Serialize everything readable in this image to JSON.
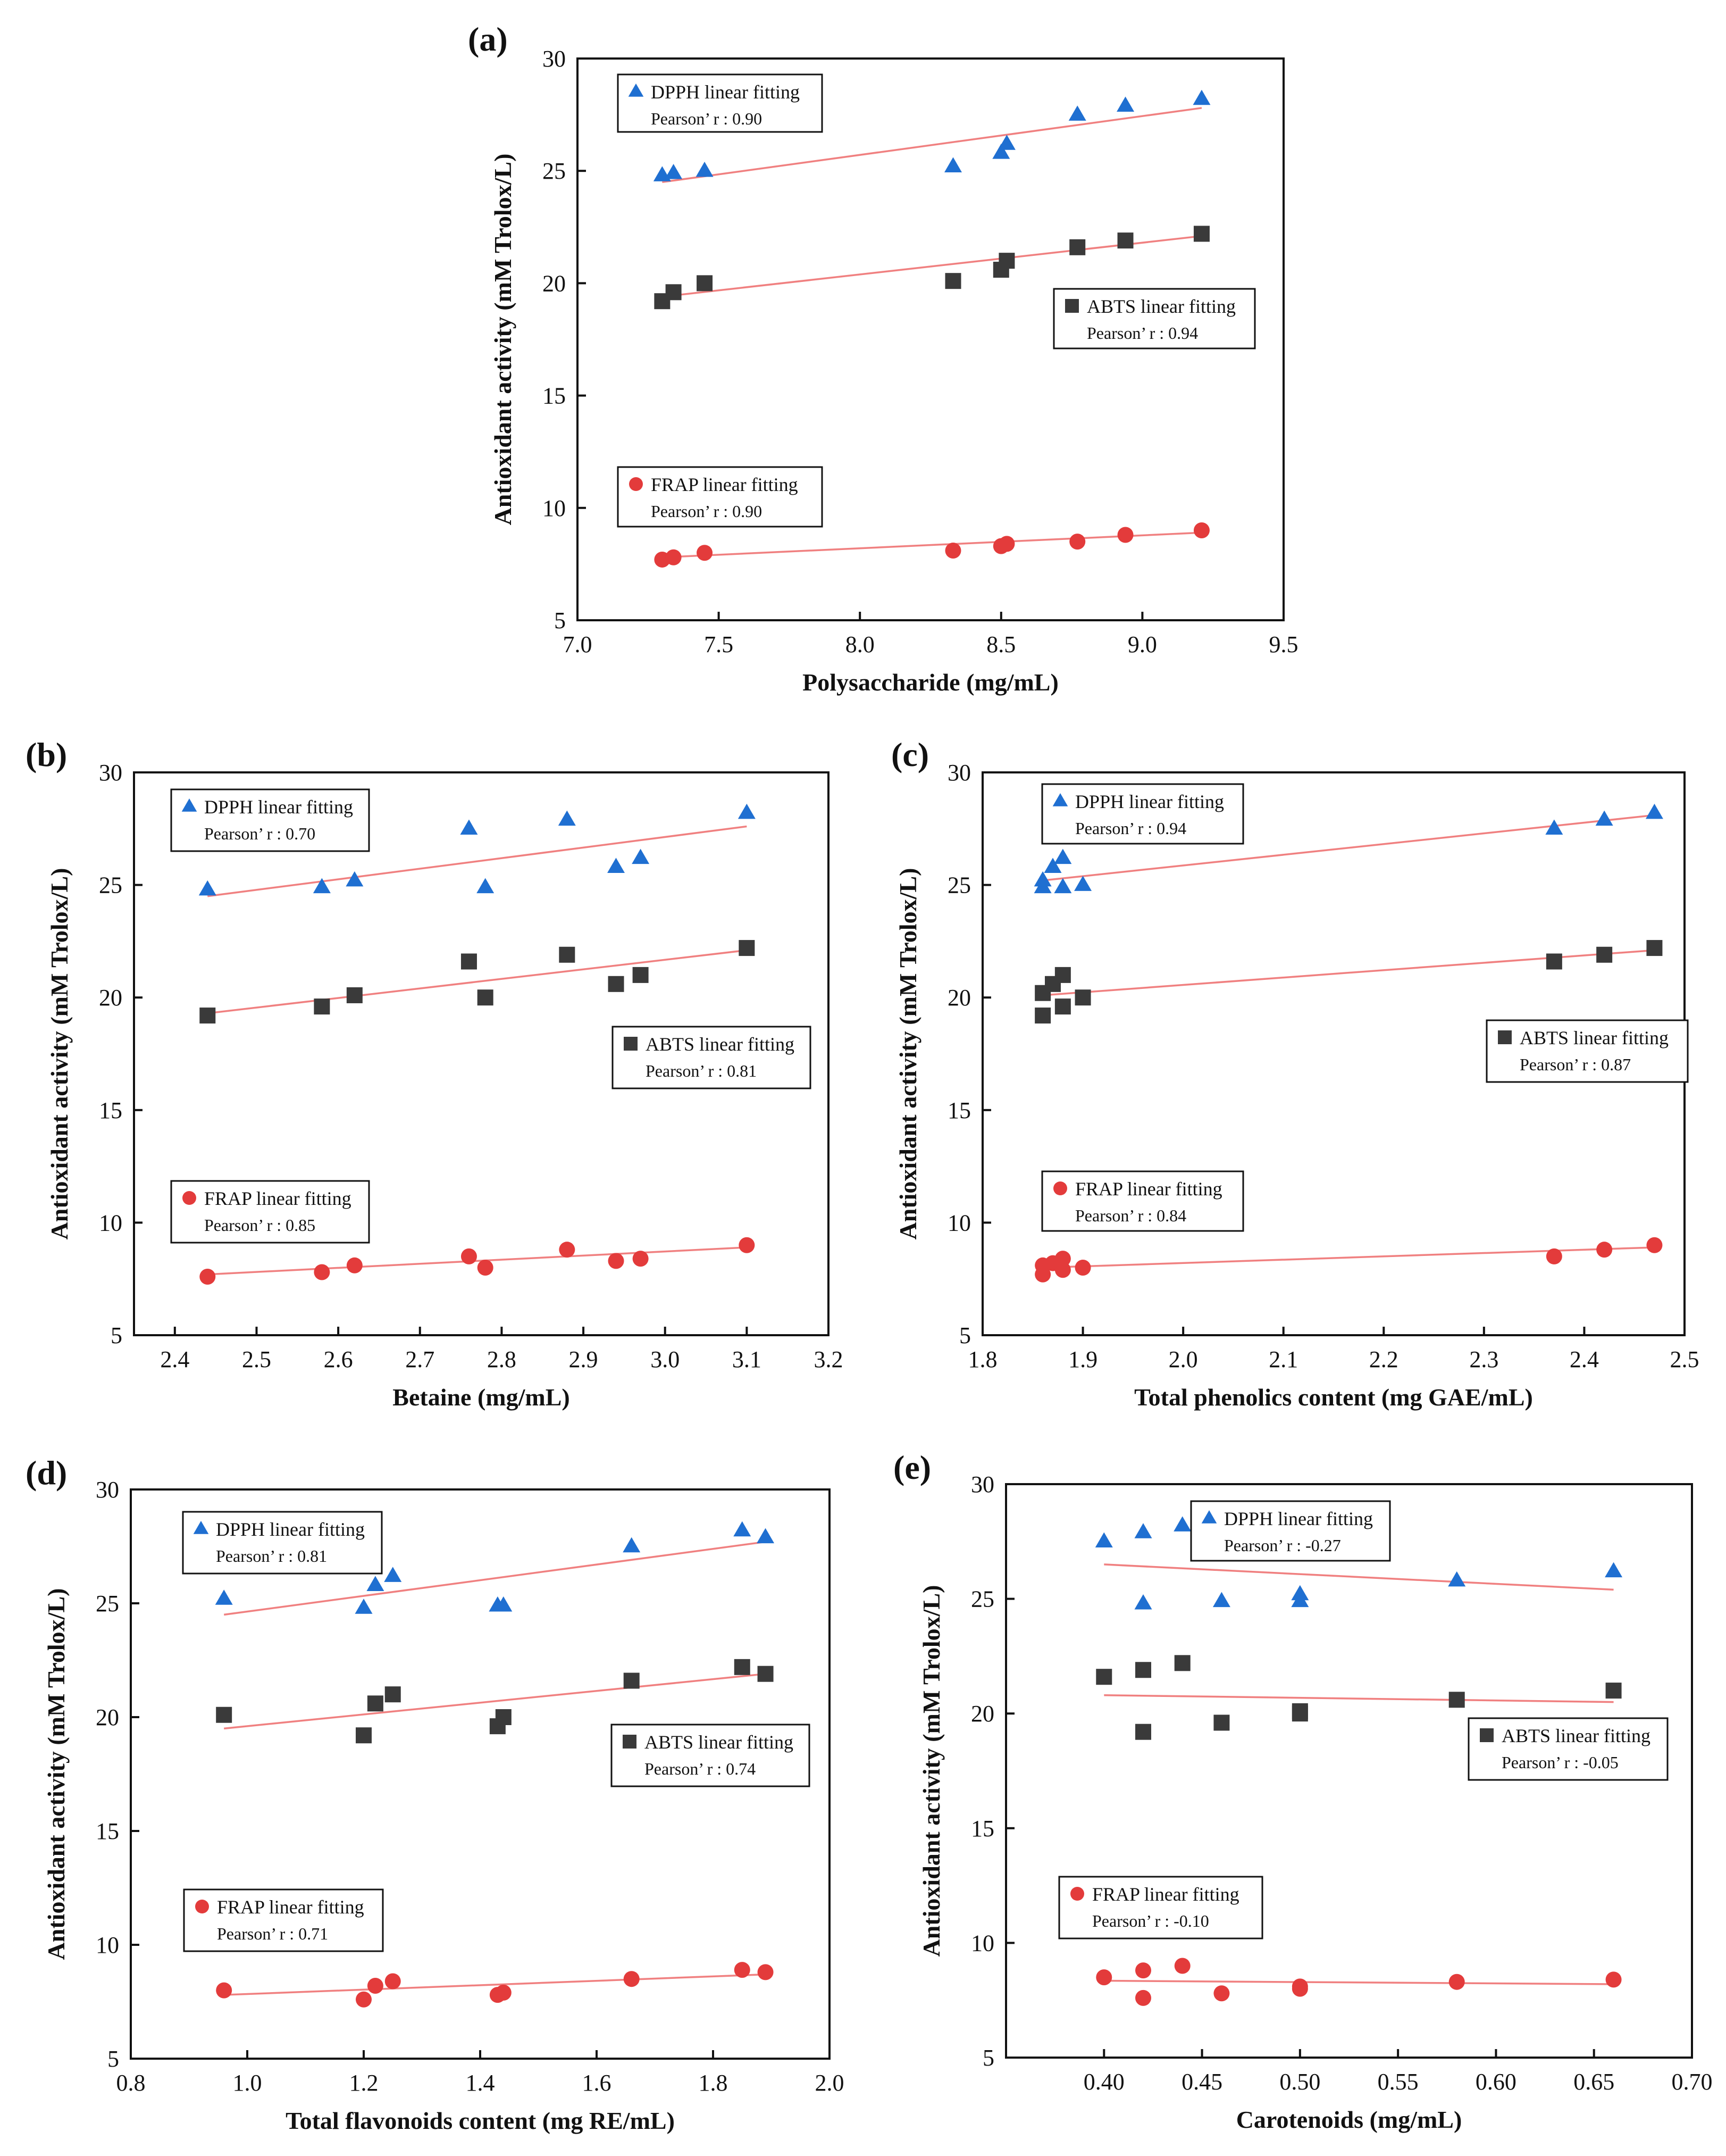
{
  "figure": {
    "ylabel_common": "Antioxidant activity (mM Trolox/L)"
  },
  "chart_data": [
    {
      "type": "scatter",
      "panel": "(a)",
      "xlabel": "Polysaccharide (mg/mL)",
      "ylabel": "Antioxidant activity (mM Trolox/L)",
      "xlim": [
        7.0,
        9.5
      ],
      "ylim": [
        5,
        30
      ],
      "xticks": [
        "7.0",
        "7.5",
        "8.0",
        "8.5",
        "9.0",
        "9.5"
      ],
      "yticks": [
        "5",
        "10",
        "15",
        "20",
        "25",
        "30"
      ],
      "x": [
        7.3,
        7.34,
        7.45,
        8.33,
        8.5,
        8.52,
        8.77,
        8.94,
        9.21
      ],
      "series": [
        {
          "name": "DPPH",
          "marker": "triangle",
          "color": "#1f6fd1",
          "values": [
            24.8,
            24.9,
            25.0,
            25.2,
            25.8,
            26.2,
            27.5,
            27.9,
            28.2
          ],
          "fit": [
            [
              7.3,
              24.5
            ],
            [
              9.21,
              27.8
            ]
          ],
          "legend": "DPPH linear  fitting",
          "pearson": "Pearson’ r :  0.90"
        },
        {
          "name": "ABTS",
          "marker": "square",
          "color": "#3a3a3a",
          "values": [
            19.2,
            19.6,
            20.0,
            20.1,
            20.6,
            21.0,
            21.6,
            21.9,
            22.2
          ],
          "fit": [
            [
              7.3,
              19.4
            ],
            [
              9.21,
              22.1
            ]
          ],
          "legend": "ABTS  linear  fitting",
          "pearson": "Pearson’ r :  0.94"
        },
        {
          "name": "FRAP",
          "marker": "circle",
          "color": "#e33b3b",
          "values": [
            7.7,
            7.8,
            8.0,
            8.1,
            8.3,
            8.4,
            8.5,
            8.8,
            9.0
          ],
          "fit": [
            [
              7.3,
              7.8
            ],
            [
              9.21,
              8.9
            ]
          ],
          "legend": "FRAP linear  fitting",
          "pearson": "Pearson’ r :  0.90"
        }
      ]
    },
    {
      "type": "scatter",
      "panel": "(b)",
      "xlabel": "Betaine (mg/mL)",
      "ylabel": "Antioxidant activity (mM Trolox/L)",
      "xlim": [
        2.35,
        3.2
      ],
      "ylim": [
        5,
        30
      ],
      "xticks": [
        "2.4",
        "2.5",
        "2.6",
        "2.7",
        "2.8",
        "2.9",
        "3.0",
        "3.1",
        "3.2"
      ],
      "yticks": [
        "5",
        "10",
        "15",
        "20",
        "25",
        "30"
      ],
      "series": [
        {
          "name": "DPPH",
          "marker": "triangle",
          "color": "#1f6fd1",
          "x": [
            2.44,
            2.58,
            2.62,
            2.76,
            2.78,
            2.88,
            2.94,
            2.97,
            3.1
          ],
          "values": [
            24.8,
            24.9,
            25.2,
            27.5,
            24.9,
            27.9,
            25.8,
            26.2,
            28.2
          ],
          "fit": [
            [
              2.44,
              24.5
            ],
            [
              3.1,
              27.6
            ]
          ],
          "legend": "DPPH linear  fitting",
          "pearson": "Pearson’ r :  0.70"
        },
        {
          "name": "ABTS",
          "marker": "square",
          "color": "#3a3a3a",
          "x": [
            2.44,
            2.58,
            2.62,
            2.76,
            2.78,
            2.88,
            2.94,
            2.97,
            3.1
          ],
          "values": [
            19.2,
            19.6,
            20.1,
            21.6,
            20.0,
            21.9,
            20.6,
            21.0,
            22.2
          ],
          "fit": [
            [
              2.44,
              19.3
            ],
            [
              3.1,
              22.1
            ]
          ],
          "legend": "ABTS linear  fitting",
          "pearson": "Pearson’ r :  0.81"
        },
        {
          "name": "FRAP",
          "marker": "circle",
          "color": "#e33b3b",
          "x": [
            2.44,
            2.58,
            2.62,
            2.76,
            2.78,
            2.88,
            2.94,
            2.97,
            3.1
          ],
          "values": [
            7.6,
            7.8,
            8.1,
            8.5,
            8.0,
            8.8,
            8.3,
            8.4,
            9.0
          ],
          "fit": [
            [
              2.44,
              7.7
            ],
            [
              3.1,
              8.9
            ]
          ],
          "legend": "FRAP linear  fitting",
          "pearson": "Pearson’ r :  0.85"
        }
      ]
    },
    {
      "type": "scatter",
      "panel": "(c)",
      "xlabel": "Total phenolics content (mg GAE/mL)",
      "ylabel": "Antioxidant activity (mM Trolox/L)",
      "xlim": [
        1.8,
        2.5
      ],
      "ylim": [
        5,
        30
      ],
      "xticks": [
        "1.8",
        "1.9",
        "2.0",
        "2.1",
        "2.2",
        "2.3",
        "2.4",
        "2.5"
      ],
      "yticks": [
        "5",
        "10",
        "15",
        "20",
        "25",
        "30"
      ],
      "series": [
        {
          "name": "DPPH",
          "marker": "triangle",
          "color": "#1f6fd1",
          "x": [
            1.86,
            1.86,
            1.87,
            1.88,
            1.88,
            1.9,
            2.37,
            2.42,
            2.47
          ],
          "values": [
            24.9,
            25.2,
            25.8,
            26.2,
            24.9,
            25.0,
            27.5,
            27.9,
            28.2
          ],
          "fit": [
            [
              1.86,
              25.2
            ],
            [
              2.47,
              28.1
            ]
          ],
          "legend": "DPPH linear  fitting",
          "pearson": "Pearson’ r :  0.94"
        },
        {
          "name": "ABTS",
          "marker": "square",
          "color": "#3a3a3a",
          "x": [
            1.86,
            1.86,
            1.87,
            1.88,
            1.88,
            1.9,
            2.37,
            2.42,
            2.47
          ],
          "values": [
            19.2,
            20.2,
            20.6,
            21.0,
            19.6,
            20.0,
            21.6,
            21.9,
            22.2
          ],
          "fit": [
            [
              1.86,
              20.1
            ],
            [
              2.47,
              22.1
            ]
          ],
          "legend": "ABTS linear  fitting",
          "pearson": "Pearson’ r :  0.87"
        },
        {
          "name": "FRAP",
          "marker": "circle",
          "color": "#e33b3b",
          "x": [
            1.86,
            1.86,
            1.87,
            1.88,
            1.88,
            1.9,
            2.37,
            2.42,
            2.47
          ],
          "values": [
            7.7,
            8.1,
            8.2,
            8.4,
            7.9,
            8.0,
            8.5,
            8.8,
            9.0
          ],
          "fit": [
            [
              1.86,
              8.0
            ],
            [
              2.47,
              8.9
            ]
          ],
          "legend": "FRAP linear  fitting",
          "pearson": "Pearson’ r :  0.84"
        }
      ]
    },
    {
      "type": "scatter",
      "panel": "(d)",
      "xlabel": "Total flavonoids content (mg RE/mL)",
      "ylabel": "Antioxidant activity (mM Trolox/L)",
      "xlim": [
        0.8,
        2.0
      ],
      "ylim": [
        5,
        30
      ],
      "xticks": [
        "0.8",
        "1.0",
        "1.2",
        "1.4",
        "1.6",
        "1.8",
        "2.0"
      ],
      "yticks": [
        "5",
        "10",
        "15",
        "20",
        "25",
        "30"
      ],
      "series": [
        {
          "name": "DPPH",
          "marker": "triangle",
          "color": "#1f6fd1",
          "x": [
            0.96,
            1.2,
            1.22,
            1.25,
            1.43,
            1.44,
            1.66,
            1.85,
            1.89
          ],
          "values": [
            25.2,
            24.8,
            25.8,
            26.2,
            24.9,
            24.9,
            27.5,
            28.2,
            27.9
          ],
          "fit": [
            [
              0.96,
              24.5
            ],
            [
              1.89,
              27.7
            ]
          ],
          "legend": "DPPH linear  fitting",
          "pearson": "Pearson’ r :  0.81"
        },
        {
          "name": "ABTS",
          "marker": "square",
          "color": "#3a3a3a",
          "x": [
            0.96,
            1.2,
            1.22,
            1.25,
            1.43,
            1.44,
            1.66,
            1.85,
            1.89
          ],
          "values": [
            20.1,
            19.2,
            20.6,
            21.0,
            19.6,
            20.0,
            21.6,
            22.2,
            21.9
          ],
          "fit": [
            [
              0.96,
              19.5
            ],
            [
              1.89,
              21.9
            ]
          ],
          "legend": "ABTS linear  fitting",
          "pearson": "Pearson’ r :  0.74"
        },
        {
          "name": "FRAP",
          "marker": "circle",
          "color": "#e33b3b",
          "x": [
            0.96,
            1.2,
            1.22,
            1.25,
            1.43,
            1.44,
            1.66,
            1.85,
            1.89
          ],
          "values": [
            8.0,
            7.6,
            8.2,
            8.4,
            7.8,
            7.9,
            8.5,
            8.9,
            8.8
          ],
          "fit": [
            [
              0.96,
              7.8
            ],
            [
              1.89,
              8.7
            ]
          ],
          "legend": "FRAP linear  fitting",
          "pearson": "Pearson’ r :  0.71"
        }
      ]
    },
    {
      "type": "scatter",
      "panel": "(e)",
      "xlabel": "Carotenoids (mg/mL)",
      "ylabel": "Antioxidant activity (mM Trolox/L)",
      "xlim": [
        0.35,
        0.7
      ],
      "ylim": [
        5,
        30
      ],
      "xticks": [
        "0.40",
        "0.45",
        "0.50",
        "0.55",
        "0.60",
        "0.65",
        "0.70"
      ],
      "yticks": [
        "5",
        "10",
        "15",
        "20",
        "25",
        "30"
      ],
      "series": [
        {
          "name": "DPPH",
          "marker": "triangle",
          "color": "#1f6fd1",
          "x": [
            0.4,
            0.42,
            0.42,
            0.44,
            0.46,
            0.5,
            0.5,
            0.58,
            0.66
          ],
          "values": [
            27.5,
            27.9,
            24.8,
            28.2,
            24.9,
            25.2,
            24.9,
            25.8,
            26.2
          ],
          "fit": [
            [
              0.4,
              26.5
            ],
            [
              0.66,
              25.4
            ]
          ],
          "legend": "DPPH linear  fitting",
          "pearson": "Pearson’ r :  -0.27"
        },
        {
          "name": "ABTS",
          "marker": "square",
          "color": "#3a3a3a",
          "x": [
            0.4,
            0.42,
            0.42,
            0.44,
            0.46,
            0.5,
            0.5,
            0.58,
            0.66
          ],
          "values": [
            21.6,
            21.9,
            19.2,
            22.2,
            19.6,
            20.1,
            20.0,
            20.6,
            21.0
          ],
          "fit": [
            [
              0.4,
              20.8
            ],
            [
              0.66,
              20.5
            ]
          ],
          "legend": "ABTS linear  fitting",
          "pearson": "Pearson’ r :  -0.05"
        },
        {
          "name": "FRAP",
          "marker": "circle",
          "color": "#e33b3b",
          "x": [
            0.4,
            0.42,
            0.42,
            0.44,
            0.46,
            0.5,
            0.5,
            0.58,
            0.66
          ],
          "values": [
            8.5,
            8.8,
            7.6,
            9.0,
            7.8,
            8.0,
            8.1,
            8.3,
            8.4
          ],
          "fit": [
            [
              0.4,
              8.35
            ],
            [
              0.66,
              8.2
            ]
          ],
          "legend": "FRAP linear  fitting",
          "pearson": "Pearson’ r :  -0.10"
        }
      ]
    }
  ]
}
